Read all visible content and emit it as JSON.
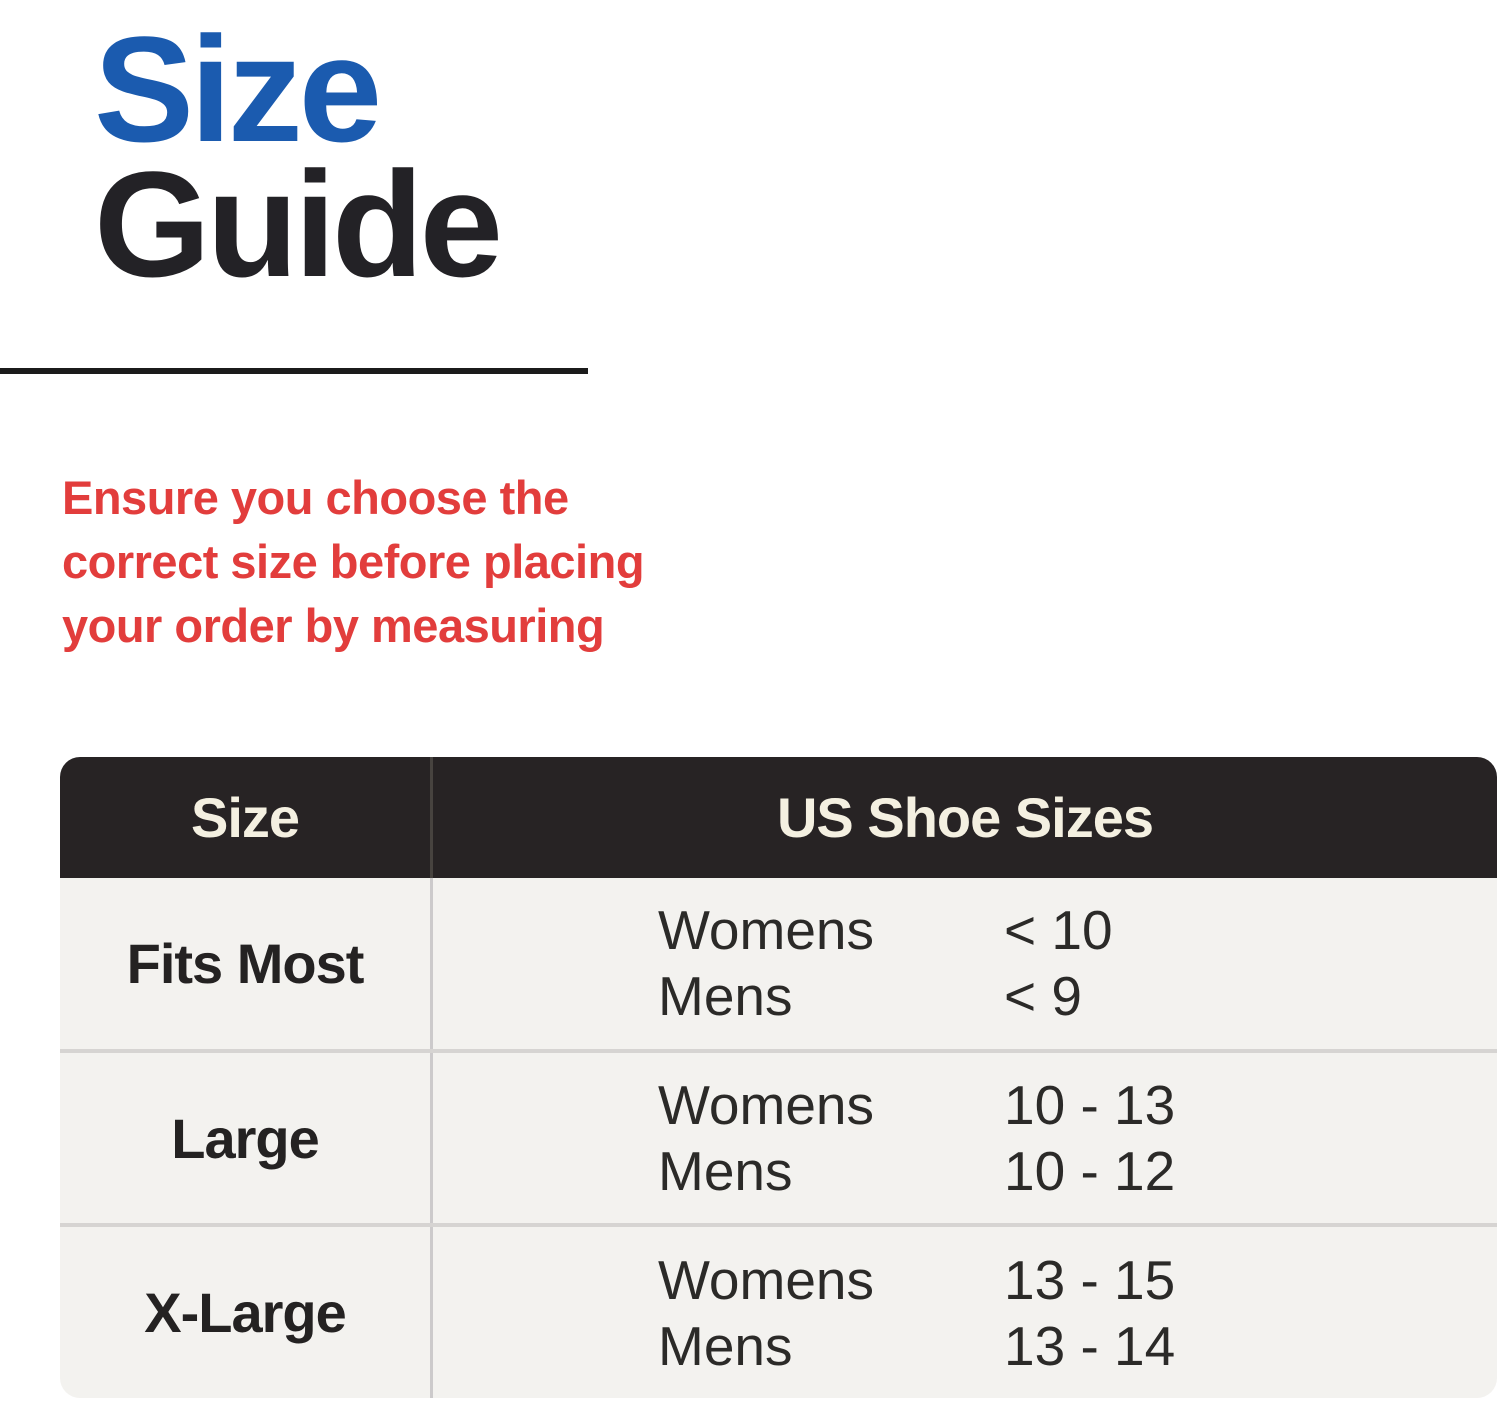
{
  "title": {
    "word1": "Size",
    "word2": "Guide"
  },
  "intro": {
    "lines": {
      "0": "Ensure you choose the",
      "1": "correct size before placing",
      "2": "your order by measuring"
    }
  },
  "colors": {
    "title_blue": "#1b5baf",
    "title_dark": "#232226",
    "warning_red": "#e23d3c",
    "header_bg": "#272324",
    "header_text": "#f4f0e1",
    "row_bg": "#f3f2ef",
    "row_divider": "#d6d4d2",
    "body_text": "#2b2a28"
  },
  "table": {
    "headers": {
      "0": "Size",
      "1": "US Shoe Sizes"
    },
    "rows": {
      "0": {
        "size": "Fits Most",
        "entries": {
          "0": {
            "label": "Womens",
            "value": "< 10"
          },
          "1": {
            "label": "Mens",
            "value": "< 9"
          }
        }
      },
      "1": {
        "size": "Large",
        "entries": {
          "0": {
            "label": "Womens",
            "value": "10 - 13"
          },
          "1": {
            "label": "Mens",
            "value": "10 - 12"
          }
        }
      },
      "2": {
        "size": "X-Large",
        "entries": {
          "0": {
            "label": "Womens",
            "value": "13 - 15"
          },
          "1": {
            "label": "Mens",
            "value": "13 - 14"
          }
        }
      }
    }
  }
}
